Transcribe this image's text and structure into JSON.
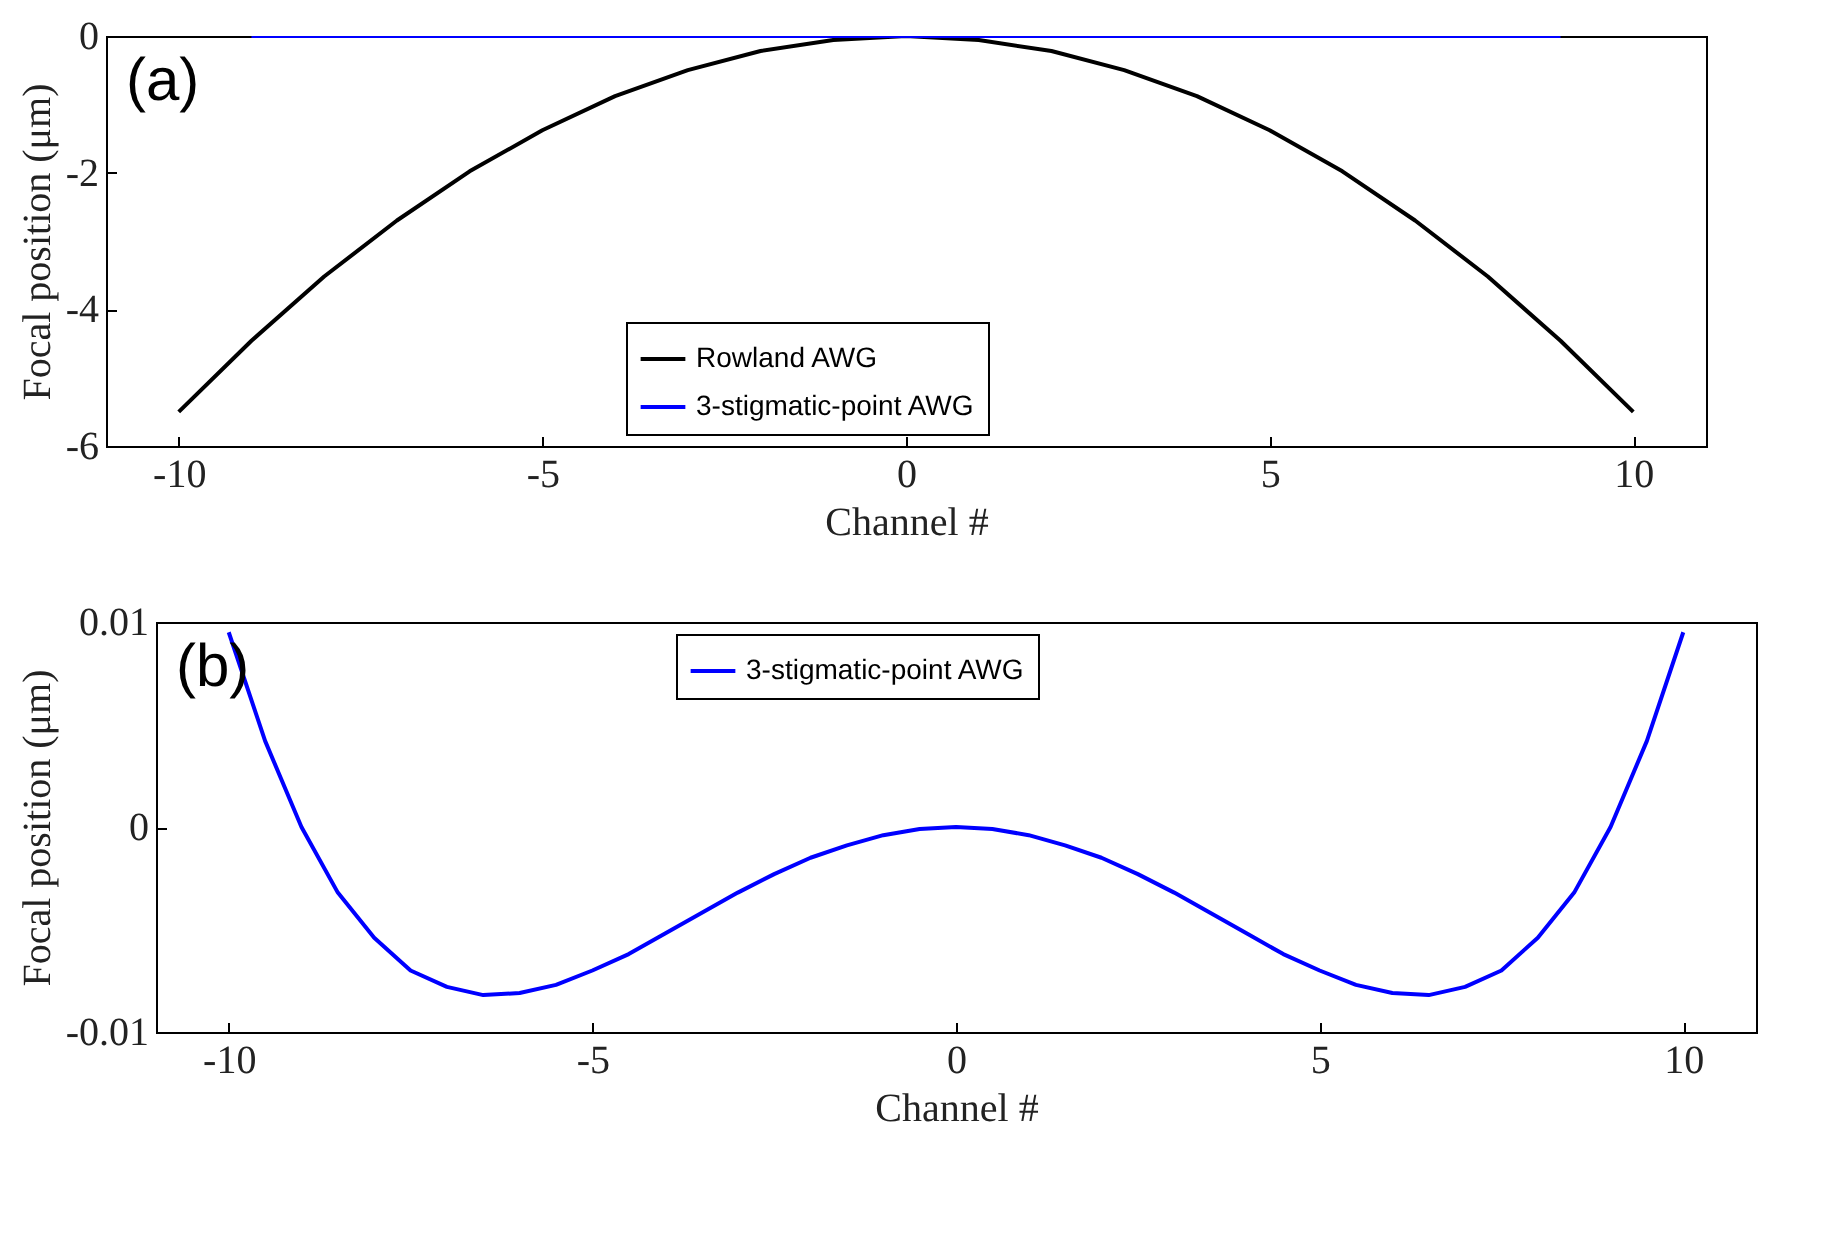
{
  "chart_data": [
    {
      "type": "line",
      "xlabel": "Channel #",
      "ylabel": "Focal position (μm)",
      "annotations": [
        "(a)"
      ],
      "xlim": [
        -11,
        11
      ],
      "xticks": [
        -10,
        -5,
        0,
        5,
        10
      ],
      "ylim": [
        -6,
        0
      ],
      "yticks": [
        -6,
        -4,
        -2,
        0
      ],
      "grid": false,
      "legend": "bottom",
      "line_style": "solid",
      "series": [
        {
          "name": "Rowland AWG",
          "color": "#000000",
          "x": [
            -10,
            -9,
            -8,
            -7,
            -6,
            -5,
            -4,
            -3,
            -2,
            -1,
            0,
            1,
            2,
            3,
            4,
            5,
            6,
            7,
            8,
            9,
            10
          ],
          "values": [
            -5.5,
            -4.46,
            -3.52,
            -2.7,
            -1.98,
            -1.38,
            -0.88,
            -0.5,
            -0.22,
            -0.06,
            0,
            -0.06,
            -0.22,
            -0.5,
            -0.88,
            -1.38,
            -1.98,
            -2.7,
            -3.52,
            -4.46,
            -5.5
          ]
        },
        {
          "name": "3-stigmatic-point AWG",
          "color": "#0000ff",
          "x": [
            -9,
            -4.5,
            0,
            4.5,
            9
          ],
          "values": [
            0,
            0,
            0,
            0,
            0
          ]
        }
      ]
    },
    {
      "type": "line",
      "xlabel": "Channel #",
      "ylabel": "Focal position (μm)",
      "annotations": [
        "(b)"
      ],
      "xlim": [
        -11,
        11
      ],
      "xticks": [
        -10,
        -5,
        0,
        5,
        10
      ],
      "ylim": [
        -0.01,
        0.01
      ],
      "yticks": [
        -0.01,
        0,
        0.01
      ],
      "grid": false,
      "legend": "top",
      "line_style": "solid",
      "series": [
        {
          "name": "3-stigmatic-point AWG",
          "color": "#0000ff",
          "x": [
            -10,
            -9.5,
            -9,
            -8.5,
            -8,
            -7.5,
            -7,
            -6.5,
            -6,
            -5.5,
            -5,
            -4.5,
            -4,
            -3.5,
            -3,
            -2.5,
            -2,
            -1.5,
            -1,
            -0.5,
            0,
            0.5,
            1,
            1.5,
            2,
            2.5,
            3,
            3.5,
            4,
            4.5,
            5,
            5.5,
            6,
            6.5,
            7,
            7.5,
            8,
            8.5,
            9,
            9.5,
            10
          ],
          "values": [
            0.0095,
            0.0042,
            0,
            -0.0032,
            -0.0054,
            -0.007,
            -0.0078,
            -0.0082,
            -0.0081,
            -0.0077,
            -0.007,
            -0.0062,
            -0.0052,
            -0.0042,
            -0.0032,
            -0.0023,
            -0.0015,
            -0.0009,
            -0.0004,
            -0.0001,
            0,
            -0.0001,
            -0.0004,
            -0.0009,
            -0.0015,
            -0.0023,
            -0.0032,
            -0.0042,
            -0.0052,
            -0.0062,
            -0.007,
            -0.0077,
            -0.0081,
            -0.0082,
            -0.0078,
            -0.007,
            -0.0054,
            -0.0032,
            0,
            0.0042,
            0.0095
          ]
        }
      ]
    }
  ]
}
